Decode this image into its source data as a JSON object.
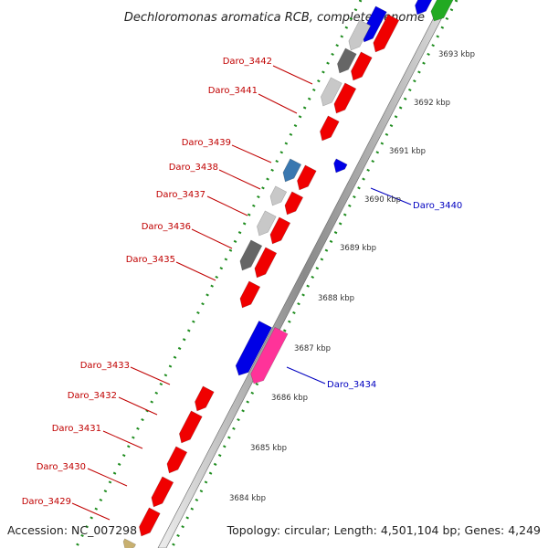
{
  "title": "Dechloromonas aromatica RCB, complete genome",
  "footer": {
    "accession": "Accession: NC_007298",
    "summary": "Topology: circular; Length: 4,501,104 bp; Genes: 4,249"
  },
  "colors": {
    "red": "#f00000",
    "blue": "#0000e6",
    "pink": "#ff3399",
    "dark_gray": "#666666",
    "light_gray": "#c8c8c8",
    "steel_blue": "#3a78b0",
    "green": "#22aa22",
    "axis": "#555555"
  },
  "left_gene_labels": [
    "Daro_3442",
    "Daro_3441",
    "Daro_3439",
    "Daro_3438",
    "Daro_3437",
    "Daro_3436",
    "Daro_3435",
    "Daro_3433",
    "Daro_3432",
    "Daro_3431",
    "Daro_3430",
    "Daro_3429"
  ],
  "right_gene_labels": [
    "Daro_3440",
    "Daro_3434"
  ],
  "kbp_labels": [
    "3693 kbp",
    "3692 kbp",
    "3691 kbp",
    "3690 kbp",
    "3689 kbp",
    "3688 kbp",
    "3687 kbp",
    "3686 kbp",
    "3685 kbp",
    "3684 kbp"
  ]
}
